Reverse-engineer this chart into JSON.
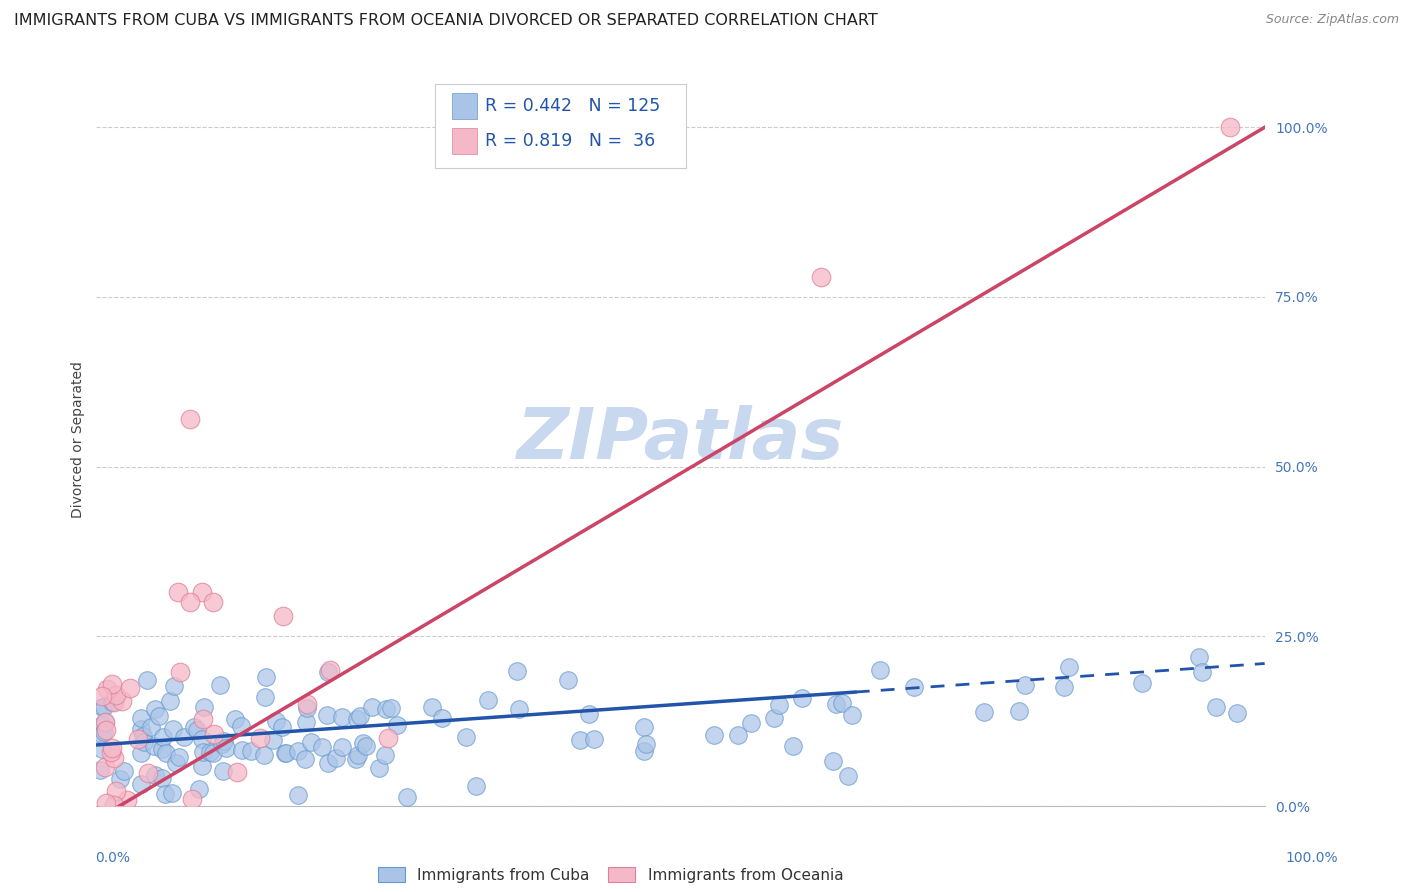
{
  "title": "IMMIGRANTS FROM CUBA VS IMMIGRANTS FROM OCEANIA DIVORCED OR SEPARATED CORRELATION CHART",
  "source": "Source: ZipAtlas.com",
  "ylabel": "Divorced or Separated",
  "watermark": "ZIPatlas",
  "legend_entries": [
    {
      "label": "Immigrants from Cuba",
      "color": "#aac4e8",
      "edge": "#6699cc",
      "R": 0.442,
      "N": 125
    },
    {
      "label": "Immigrants from Oceania",
      "color": "#f5b8c8",
      "edge": "#e08098",
      "R": 0.819,
      "N": 36
    }
  ],
  "trend_cuba_color": "#2255aa",
  "trend_oceania_color": "#cc4466",
  "background_color": "#ffffff",
  "grid_color": "#cccccc",
  "title_fontsize": 11.5,
  "source_fontsize": 9,
  "axis_label_fontsize": 10,
  "tick_fontsize": 10,
  "legend_fontsize": 11,
  "watermark_fontsize": 52,
  "watermark_color": "#c8d8ee",
  "ytick_positions": [
    0.0,
    0.25,
    0.5,
    0.75,
    1.0
  ],
  "ytick_labels": [
    "0.0%",
    "25.0%",
    "50.0%",
    "75.0%",
    "100.0%"
  ],
  "ylim": [
    0.0,
    1.08
  ],
  "xlim": [
    0.0,
    1.0
  ]
}
